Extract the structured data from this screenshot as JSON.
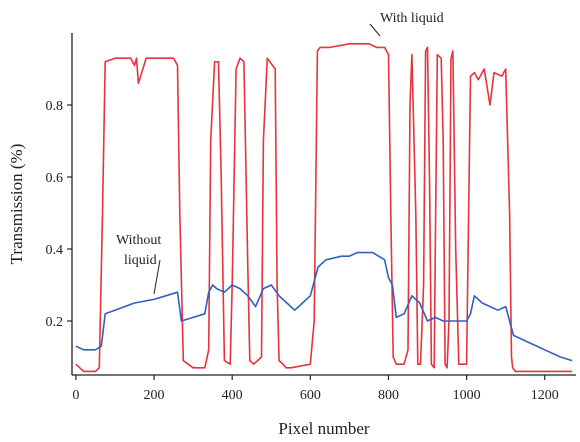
{
  "chart_data": {
    "type": "line",
    "title": "",
    "xlabel": "Pixel number",
    "ylabel": "Transmission (%)",
    "xlim": [
      -10,
      1280
    ],
    "ylim": [
      0.05,
      1.0
    ],
    "xticks": [
      0,
      200,
      400,
      600,
      800,
      1000,
      1200
    ],
    "xtick_labels": [
      "0",
      "200",
      "400",
      "600",
      "800",
      "1000",
      "1200"
    ],
    "yticks": [
      0.2,
      0.4,
      0.6,
      0.8
    ],
    "ytick_labels": [
      "0.2",
      "0.4",
      "0.6",
      "0.8"
    ],
    "grid": false,
    "legend": "none",
    "annotations": [
      {
        "text_lines": [
          "With liquid"
        ],
        "series": "With liquid"
      },
      {
        "text_lines": [
          "Without",
          "liquid"
        ],
        "series": "Without liquid"
      }
    ],
    "series": [
      {
        "name": "With liquid",
        "color": "#e8323c",
        "x": [
          0,
          10,
          20,
          50,
          60,
          68,
          75,
          100,
          140,
          150,
          155,
          160,
          180,
          250,
          260,
          266,
          275,
          300,
          330,
          340,
          345,
          355,
          365,
          372,
          380,
          395,
          400,
          410,
          420,
          430,
          440,
          445,
          455,
          475,
          480,
          490,
          510,
          515,
          520,
          530,
          538,
          550,
          600,
          610,
          618,
          625,
          650,
          700,
          750,
          770,
          790,
          800,
          806,
          812,
          820,
          840,
          850,
          855,
          860,
          870,
          875,
          882,
          890,
          895,
          900,
          905,
          910,
          917,
          920,
          925,
          935,
          940,
          945,
          950,
          955,
          960,
          965,
          972,
          980,
          1000,
          1005,
          1010,
          1020,
          1030,
          1045,
          1060,
          1070,
          1090,
          1100,
          1110,
          1115,
          1118,
          1125,
          1140,
          1160,
          1200,
          1240,
          1270
        ],
        "y": [
          0.08,
          0.07,
          0.06,
          0.06,
          0.07,
          0.5,
          0.92,
          0.93,
          0.93,
          0.91,
          0.93,
          0.86,
          0.93,
          0.93,
          0.91,
          0.5,
          0.09,
          0.07,
          0.07,
          0.12,
          0.7,
          0.92,
          0.92,
          0.6,
          0.09,
          0.08,
          0.3,
          0.9,
          0.93,
          0.92,
          0.35,
          0.09,
          0.08,
          0.1,
          0.7,
          0.93,
          0.9,
          0.3,
          0.09,
          0.08,
          0.07,
          0.07,
          0.08,
          0.2,
          0.95,
          0.96,
          0.96,
          0.97,
          0.97,
          0.96,
          0.96,
          0.94,
          0.5,
          0.1,
          0.08,
          0.08,
          0.12,
          0.8,
          0.94,
          0.5,
          0.08,
          0.08,
          0.3,
          0.95,
          0.96,
          0.6,
          0.08,
          0.07,
          0.4,
          0.94,
          0.93,
          0.7,
          0.08,
          0.07,
          0.2,
          0.93,
          0.95,
          0.4,
          0.08,
          0.08,
          0.5,
          0.88,
          0.89,
          0.87,
          0.9,
          0.8,
          0.89,
          0.88,
          0.9,
          0.5,
          0.1,
          0.07,
          0.06,
          0.06,
          0.06,
          0.06,
          0.06,
          0.06
        ]
      },
      {
        "name": "Without liquid",
        "color": "#3060c0",
        "x": [
          0,
          20,
          50,
          65,
          75,
          100,
          150,
          200,
          230,
          260,
          270,
          300,
          330,
          340,
          350,
          360,
          380,
          400,
          420,
          440,
          460,
          480,
          500,
          520,
          540,
          560,
          580,
          600,
          620,
          640,
          680,
          700,
          720,
          760,
          790,
          800,
          810,
          820,
          840,
          860,
          880,
          900,
          920,
          940,
          960,
          980,
          1000,
          1010,
          1020,
          1040,
          1060,
          1080,
          1100,
          1110,
          1120,
          1140,
          1160,
          1200,
          1240,
          1270
        ],
        "y": [
          0.13,
          0.12,
          0.12,
          0.13,
          0.22,
          0.23,
          0.25,
          0.26,
          0.27,
          0.28,
          0.2,
          0.21,
          0.22,
          0.28,
          0.3,
          0.29,
          0.28,
          0.3,
          0.29,
          0.27,
          0.24,
          0.29,
          0.3,
          0.27,
          0.25,
          0.23,
          0.25,
          0.27,
          0.35,
          0.37,
          0.38,
          0.38,
          0.39,
          0.39,
          0.37,
          0.32,
          0.3,
          0.21,
          0.22,
          0.27,
          0.25,
          0.2,
          0.21,
          0.2,
          0.2,
          0.2,
          0.2,
          0.22,
          0.27,
          0.25,
          0.24,
          0.23,
          0.24,
          0.2,
          0.16,
          0.15,
          0.14,
          0.12,
          0.1,
          0.09
        ]
      }
    ]
  }
}
